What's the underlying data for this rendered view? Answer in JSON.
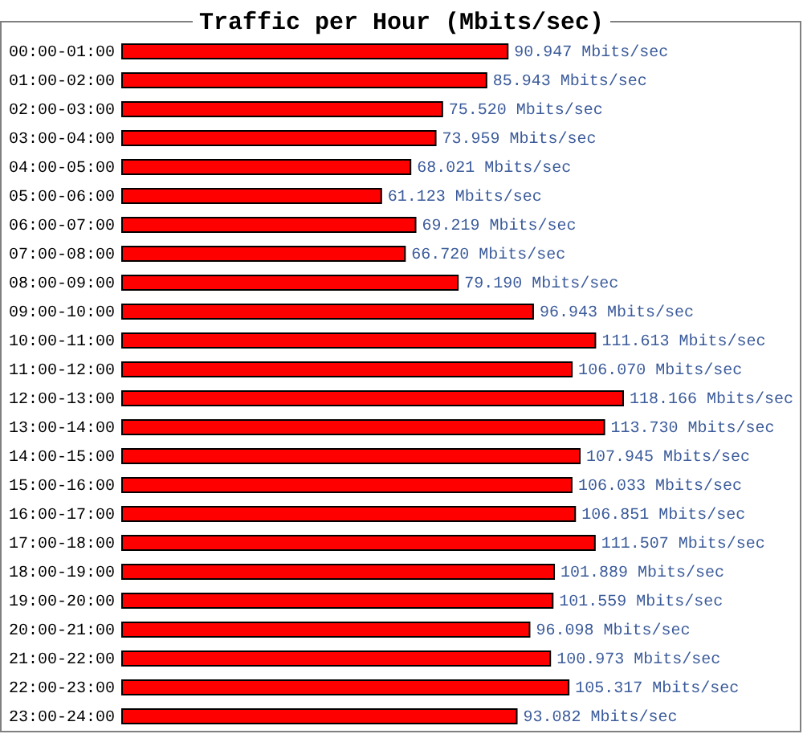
{
  "chart_data": {
    "type": "bar",
    "orientation": "horizontal",
    "title": "Traffic per Hour (Mbits/sec)",
    "categories": [
      "00:00-01:00",
      "01:00-02:00",
      "02:00-03:00",
      "03:00-04:00",
      "04:00-05:00",
      "05:00-06:00",
      "06:00-07:00",
      "07:00-08:00",
      "08:00-09:00",
      "09:00-10:00",
      "10:00-11:00",
      "11:00-12:00",
      "12:00-13:00",
      "13:00-14:00",
      "14:00-15:00",
      "15:00-16:00",
      "16:00-17:00",
      "17:00-18:00",
      "18:00-19:00",
      "19:00-20:00",
      "20:00-21:00",
      "21:00-22:00",
      "22:00-23:00",
      "23:00-24:00"
    ],
    "values": [
      90.947,
      85.943,
      75.52,
      73.959,
      68.021,
      61.123,
      69.219,
      66.72,
      79.19,
      96.943,
      111.613,
      106.07,
      118.166,
      113.73,
      107.945,
      106.033,
      106.851,
      111.507,
      101.889,
      101.559,
      96.098,
      100.973,
      105.317,
      93.082
    ],
    "value_labels": [
      "90.947 Mbits/sec",
      "85.943 Mbits/sec",
      "75.520 Mbits/sec",
      "73.959 Mbits/sec",
      "68.021 Mbits/sec",
      "61.123 Mbits/sec",
      "69.219 Mbits/sec",
      "66.720 Mbits/sec",
      "79.190 Mbits/sec",
      "96.943 Mbits/sec",
      "111.613 Mbits/sec",
      "106.070 Mbits/sec",
      "118.166 Mbits/sec",
      "113.730 Mbits/sec",
      "107.945 Mbits/sec",
      "106.033 Mbits/sec",
      "106.851 Mbits/sec",
      "111.507 Mbits/sec",
      "101.889 Mbits/sec",
      "101.559 Mbits/sec",
      "96.098 Mbits/sec",
      "100.973 Mbits/sec",
      "105.317 Mbits/sec",
      "93.082 Mbits/sec"
    ],
    "color": "#ff0000"
  }
}
